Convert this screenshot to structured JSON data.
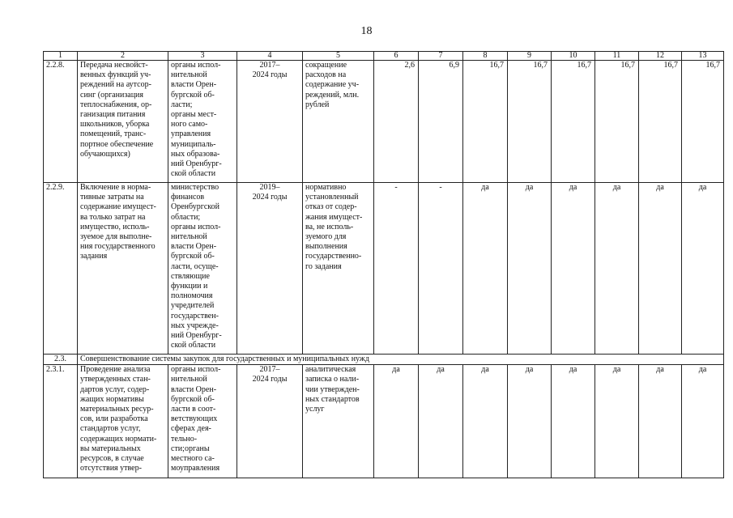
{
  "page_number": "18",
  "table": {
    "headers": [
      "1",
      "2",
      "3",
      "4",
      "5",
      "6",
      "7",
      "8",
      "9",
      "10",
      "11",
      "12",
      "13"
    ],
    "rows": [
      {
        "id": "2.2.8.",
        "measure": "Передача несвойст-\nвенных функций уч-\nреждений на аутсор-\nсинг (организация\nтеплоснабжения, ор-\nганизация питания\nшкольников, уборка\nпомещений, транс-\nпортное обеспечение\nобучающихся)",
        "executor": "органы испол-\nнительной\nвласти Орен-\nбургской об-\nласти;\nорганы мест-\nного само-\nуправления\nмуниципаль-\nных образова-\nний Оренбург-\nской области",
        "period": "2017–\n2024 годы",
        "result": "сокращение\nрасходов на\nсодержание уч-\nреждений, млн.\nрублей",
        "values": [
          "2,6",
          "6,9",
          "16,7",
          "16,7",
          "16,7",
          "16,7",
          "16,7",
          "16,7"
        ]
      },
      {
        "id": "2.2.9.",
        "measure": "Включение в норма-\nтивные затраты на\nсодержание имущест-\nва только затрат на\nимущество, исполь-\nзуемое для выполне-\nния государственного\nзадания",
        "executor": "министерство\nфинансов\nОренбургской\nобласти;\nорганы испол-\nнительной\nвласти Орен-\nбургской об-\nласти, осуще-\nствляющие\nфункции и\nполномочия\nучредителей\nгосударствен-\nных учрежде-\nний Оренбург-\nской области",
        "period": "2019–\n2024 годы",
        "result": "нормативно\nустановленный\nотказ от содер-\nжания имущест-\nва, не исполь-\nзуемого для\nвыполнения\nгосударственно-\nго задания",
        "values": [
          "-",
          "-",
          "да",
          "да",
          "да",
          "да",
          "да",
          "да"
        ]
      }
    ],
    "section": {
      "id": "2.3.",
      "title": "Совершенствование системы закупок для государственных и муниципальных нужд"
    },
    "rows2": [
      {
        "id": "2.3.1.",
        "measure": "Проведение анализа\nутвержденных стан-\nдартов услуг, содер-\nжащих нормативы\nматериальных ресур-\nсов, или разработка\nстандартов услуг,\nсодержащих нормати-\nвы материальных\nресурсов, в случае\nотсутствия утвер-",
        "executor": "органы испол-\nнительной\nвласти Орен-\nбургской об-\nласти в соот-\nветствующих\nсферах дея-\nтельно-\nсти;органы\nместного са-\nмоуправления",
        "period": "2017–\n2024 годы",
        "result": "аналитическая\nзаписка о нали-\nчии утвержден-\nных стандартов\nуслуг",
        "values": [
          "да",
          "да",
          "да",
          "да",
          "да",
          "да",
          "да",
          "да"
        ]
      }
    ]
  }
}
